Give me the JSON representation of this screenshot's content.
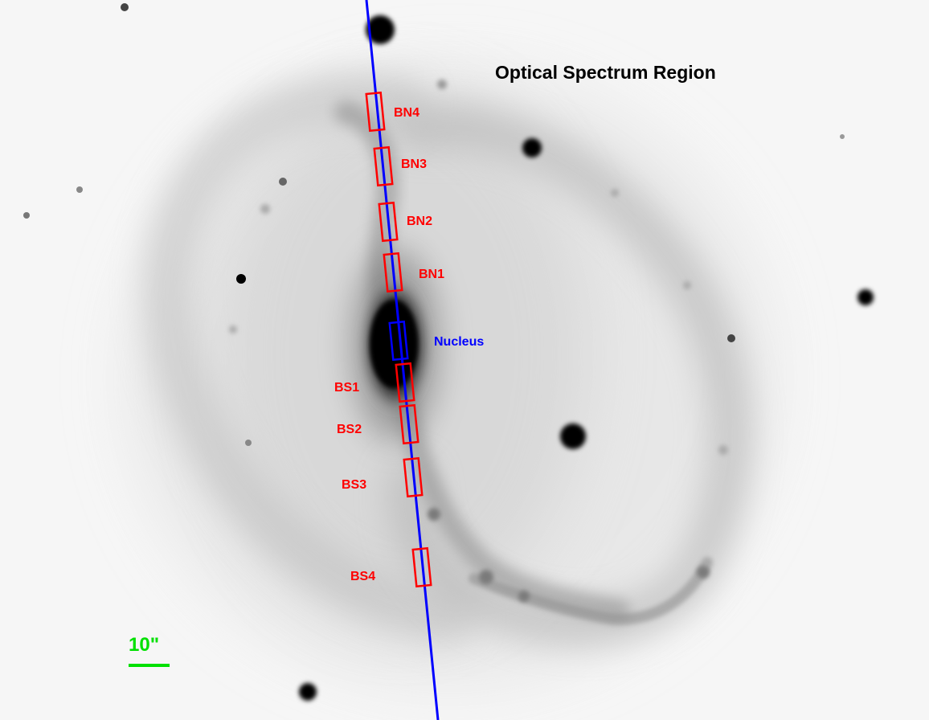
{
  "image": {
    "title": "Optical Spectrum Region",
    "scale_bar_label": "10\"",
    "regions": [
      {
        "id": "BN4",
        "label": "BN4",
        "kind": "aperture"
      },
      {
        "id": "BN3",
        "label": "BN3",
        "kind": "aperture"
      },
      {
        "id": "BN2",
        "label": "BN2",
        "kind": "aperture"
      },
      {
        "id": "BN1",
        "label": "BN1",
        "kind": "aperture"
      },
      {
        "id": "Nucleus",
        "label": "Nucleus",
        "kind": "nucleus"
      },
      {
        "id": "BS1",
        "label": "BS1",
        "kind": "aperture"
      },
      {
        "id": "BS2",
        "label": "BS2",
        "kind": "aperture"
      },
      {
        "id": "BS3",
        "label": "BS3",
        "kind": "aperture"
      },
      {
        "id": "BS4",
        "label": "BS4",
        "kind": "aperture"
      }
    ],
    "colors": {
      "aperture": "#ff0000",
      "nucleus": "#0000ff",
      "slit": "#0000ff",
      "scale_bar": "#00e000",
      "title": "#000000"
    }
  }
}
